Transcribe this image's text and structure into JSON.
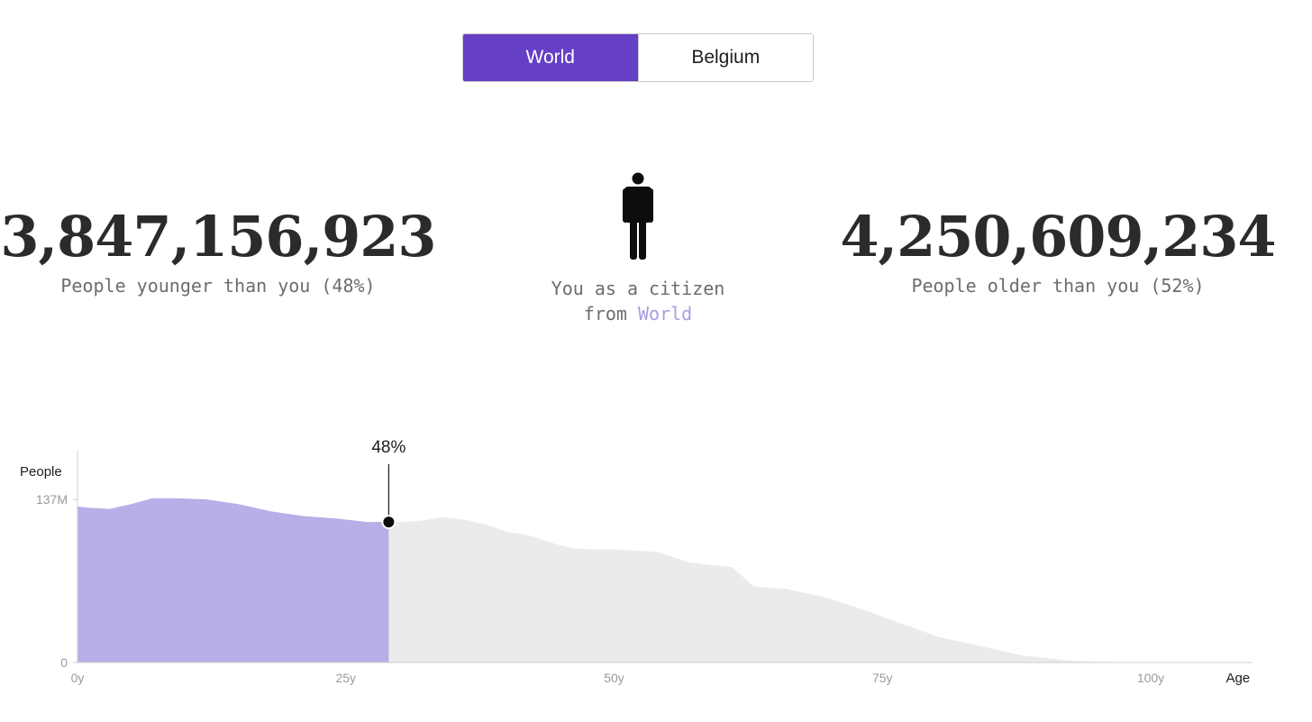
{
  "toggle": {
    "options": [
      "World",
      "Belgium"
    ],
    "selected": "World"
  },
  "younger": {
    "count": "3,847,156,923",
    "caption": "People younger than you (48%)"
  },
  "older": {
    "count": "4,250,609,234",
    "caption": "People older than you (52%)"
  },
  "citizen": {
    "line1": "You as a citizen",
    "line2_prefix": "from",
    "country": "World"
  },
  "colors": {
    "accent": "#653fc5",
    "younger_fill": "#b8aee8",
    "older_fill": "#ebebeb",
    "country_text": "#a99ce3"
  },
  "icons": {
    "person": "person-standing-icon"
  },
  "chart_data": {
    "type": "area",
    "ylabel": "People",
    "xlabel": "Age",
    "x_ticks": [
      0,
      25,
      50,
      75,
      100
    ],
    "x_tick_labels": [
      "0y",
      "25y",
      "50y",
      "75y",
      "100y"
    ],
    "y_ticks": [
      0,
      137
    ],
    "y_tick_labels": [
      "0",
      "137M"
    ],
    "y_unit": "millions of people",
    "xlim": [
      0,
      109.5
    ],
    "ylim": [
      0,
      137
    ],
    "marker": {
      "age": 29,
      "label": "48%",
      "value": 118
    },
    "series": [
      {
        "x": [
          0,
          1,
          3,
          5,
          7,
          9,
          12,
          15,
          18,
          21,
          24,
          27,
          29,
          30,
          32,
          34,
          36,
          38,
          40,
          42,
          44,
          46,
          48,
          50,
          52,
          54,
          56,
          57,
          59,
          61,
          62,
          63,
          64,
          66,
          68,
          70,
          72,
          74,
          76,
          78,
          80,
          82,
          84,
          86,
          88,
          90,
          92,
          94,
          96,
          98,
          100,
          102
        ],
        "y": [
          131,
          130,
          129,
          133,
          138,
          138,
          137,
          133,
          127,
          123,
          121,
          118,
          118,
          118,
          119,
          122,
          120,
          116,
          110,
          107,
          101,
          96,
          95,
          95,
          94,
          93,
          87,
          84,
          82,
          80,
          72,
          64,
          63,
          62,
          58,
          54,
          48,
          42,
          35,
          29,
          22,
          18,
          14,
          10,
          6,
          4,
          2,
          1,
          0.5,
          0.2,
          0.1,
          0
        ]
      }
    ]
  }
}
